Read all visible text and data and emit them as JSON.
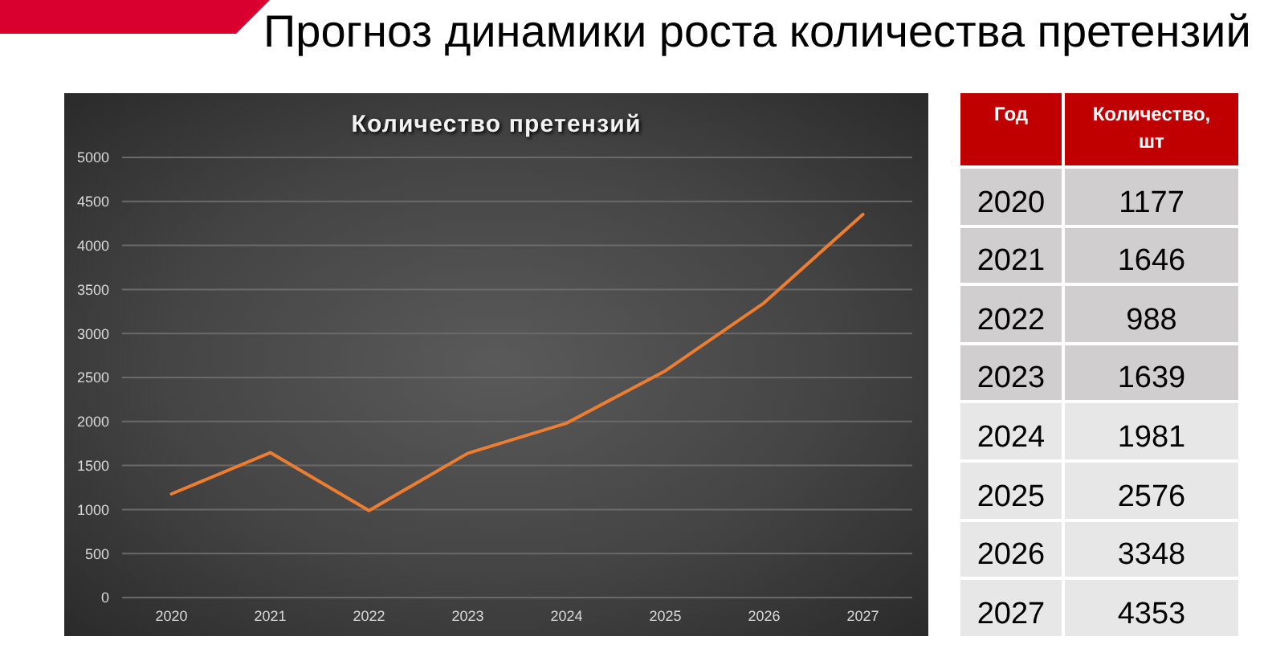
{
  "chart_data": {
    "type": "line",
    "title": "Прогноз динамики роста количества претензий",
    "subtitle": "Количество претензий",
    "categories": [
      "2020",
      "2021",
      "2022",
      "2023",
      "2024",
      "2025",
      "2026",
      "2027"
    ],
    "series": [
      {
        "color": "#ed7d31",
        "values": [
          1177,
          1646,
          988,
          1639,
          1981,
          2576,
          3348,
          4353
        ]
      }
    ],
    "ylim": [
      0,
      5000
    ],
    "yticks": [
      0,
      500,
      1000,
      1500,
      2000,
      2500,
      3000,
      3500,
      4000,
      4500,
      5000
    ],
    "grid": "y",
    "annotations": [
      "Год",
      "Количество, шт",
      "1177",
      "1646",
      "988",
      "1639",
      "1981",
      "2576",
      "3348",
      "4353"
    ]
  }
}
